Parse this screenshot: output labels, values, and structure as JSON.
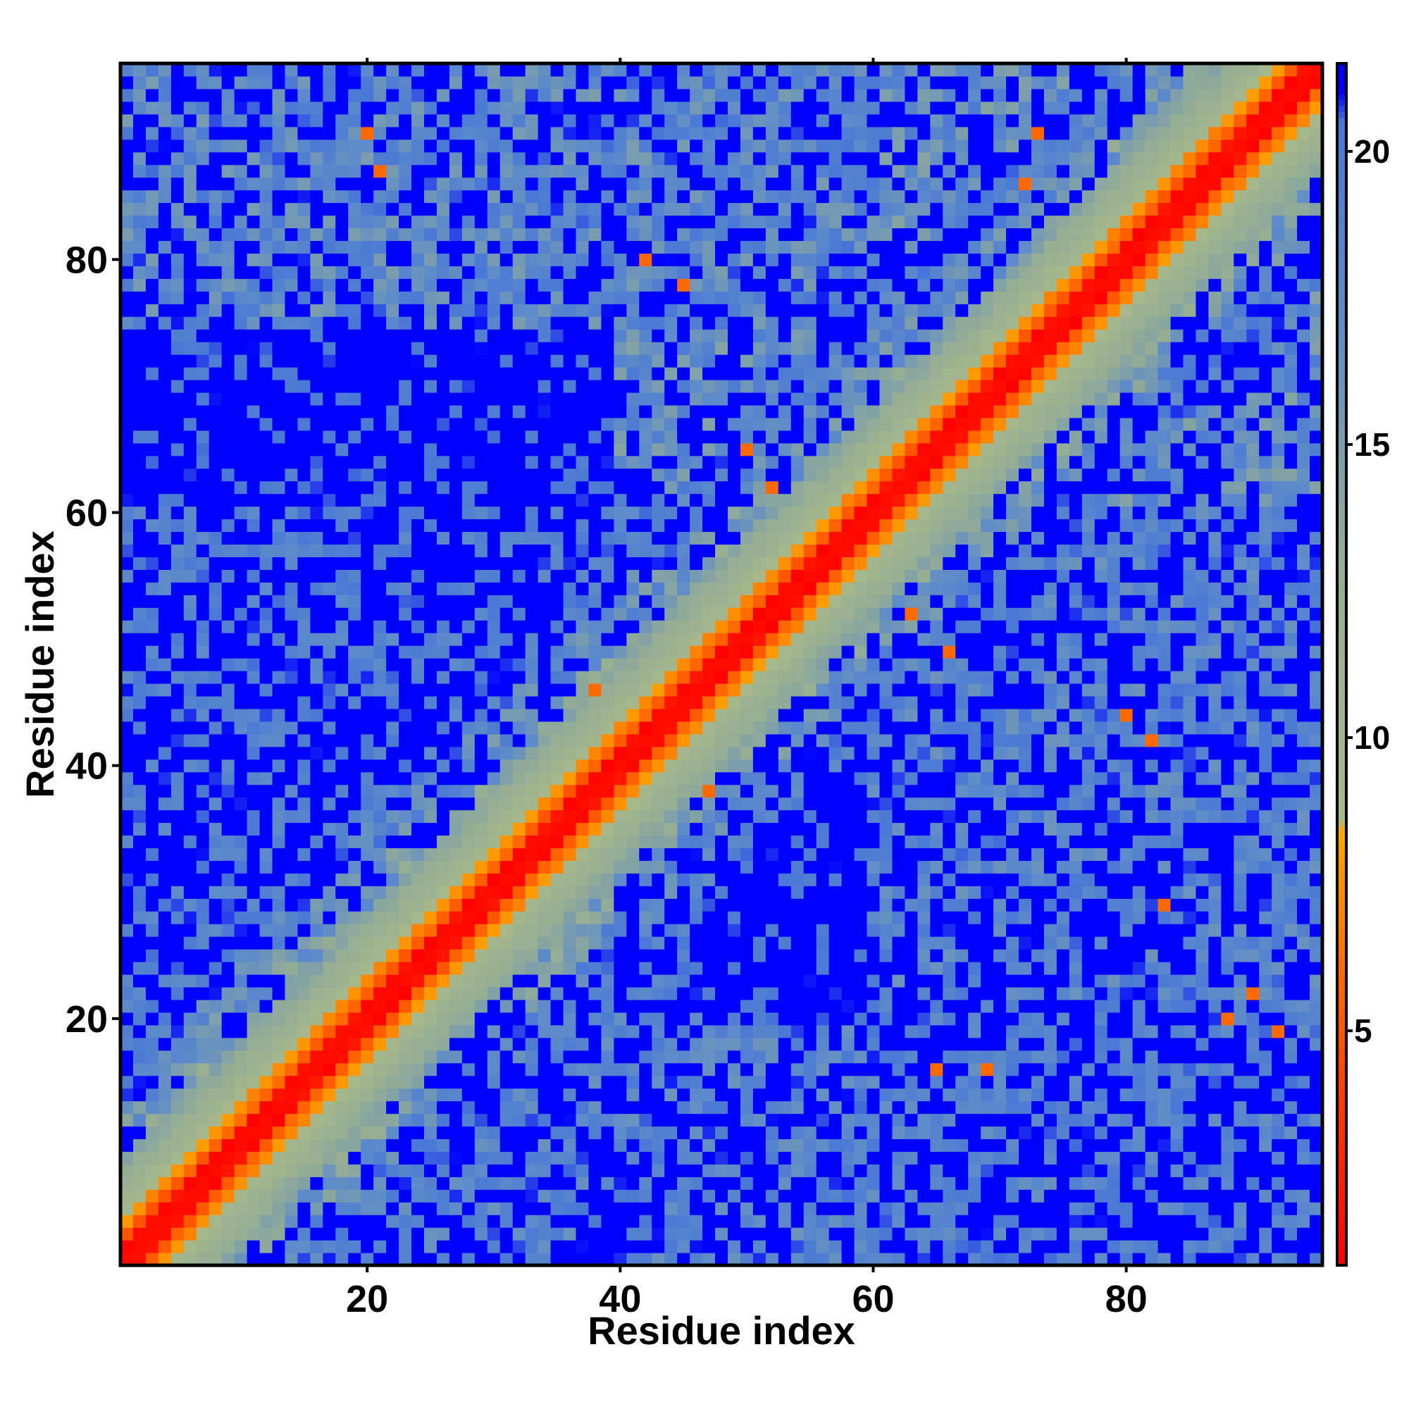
{
  "chart_data": {
    "type": "heatmap",
    "title": "",
    "xlabel": "Residue index",
    "ylabel": "Residue index",
    "x_range": [
      1,
      95
    ],
    "y_range": [
      1,
      95
    ],
    "x_ticks": [
      20,
      40,
      60,
      80
    ],
    "y_ticks": [
      20,
      40,
      60,
      80
    ],
    "colorbar": {
      "ticks": [
        5,
        10,
        15,
        20
      ],
      "range": [
        1,
        21.5
      ],
      "stops": [
        {
          "value": 1,
          "color": "#ff0000"
        },
        {
          "value": 6,
          "color": "#ff6a00"
        },
        {
          "value": 8.4,
          "color": "#ffa500"
        },
        {
          "value": 8.6,
          "color": "#a8b98a"
        },
        {
          "value": 13,
          "color": "#95ad94"
        },
        {
          "value": 17,
          "color": "#5f8cc8"
        },
        {
          "value": 20.5,
          "color": "#4a78d6"
        },
        {
          "value": 21,
          "color": "#0000ff"
        }
      ]
    },
    "matrix": {
      "n": 95,
      "description_of_values": "Inter-residue distance map (symmetric-like), values roughly 1 on diagonal, increasing with |i-j|, blue (>=21) for far pairs",
      "diagonal_value": 1.5,
      "near_diagonal_band": [
        [
          1,
          1.5
        ],
        [
          2,
          5.5
        ],
        [
          3,
          7.5
        ],
        [
          4,
          9.5
        ],
        [
          6,
          12
        ],
        [
          9,
          15
        ],
        [
          13,
          18
        ],
        [
          18,
          20.5
        ]
      ],
      "blue_threshold": 21,
      "blocks": [
        {
          "x": [
            1,
            60
          ],
          "y": [
            1,
            20
          ],
          "mean": 19
        },
        {
          "x": [
            60,
            95
          ],
          "y": [
            1,
            20
          ],
          "mean": 19.5
        },
        {
          "x": [
            1,
            45
          ],
          "y": [
            20,
            60
          ],
          "mean": 20
        },
        {
          "x": [
            60,
            95
          ],
          "y": [
            20,
            60
          ],
          "mean": 19
        },
        {
          "x": [
            1,
            60
          ],
          "y": [
            75,
            95
          ],
          "mean": 18
        },
        {
          "x": [
            40,
            95
          ],
          "y": [
            60,
            95
          ],
          "mean": 17
        }
      ],
      "hotspots": [
        {
          "x": 42,
          "y": 80,
          "value": 6
        },
        {
          "x": 45,
          "y": 78,
          "value": 6
        },
        {
          "x": 50,
          "y": 65,
          "value": 6
        },
        {
          "x": 52,
          "y": 62,
          "value": 6
        },
        {
          "x": 63,
          "y": 52,
          "value": 6
        },
        {
          "x": 66,
          "y": 49,
          "value": 6
        },
        {
          "x": 80,
          "y": 44,
          "value": 6
        },
        {
          "x": 82,
          "y": 42,
          "value": 6
        },
        {
          "x": 90,
          "y": 22,
          "value": 6
        },
        {
          "x": 88,
          "y": 20,
          "value": 6
        },
        {
          "x": 65,
          "y": 16,
          "value": 6
        },
        {
          "x": 69,
          "y": 16,
          "value": 6
        },
        {
          "x": 38,
          "y": 46,
          "value": 6
        },
        {
          "x": 47,
          "y": 38,
          "value": 6
        },
        {
          "x": 20,
          "y": 90,
          "value": 6
        },
        {
          "x": 21,
          "y": 87,
          "value": 6
        },
        {
          "x": 72,
          "y": 86,
          "value": 6
        },
        {
          "x": 73,
          "y": 90,
          "value": 6
        },
        {
          "x": 83,
          "y": 29,
          "value": 6
        },
        {
          "x": 92,
          "y": 19,
          "value": 6
        }
      ]
    },
    "grid": false,
    "legend": "colorbar-right"
  }
}
